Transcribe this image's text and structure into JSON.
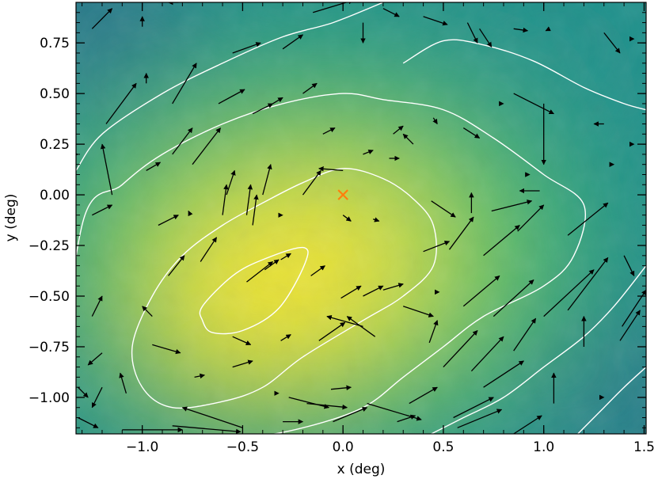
{
  "chart_data": {
    "type": "quiver",
    "xlabel": "x (deg)",
    "ylabel": "y (deg)",
    "xlim": [
      -1.33,
      1.51
    ],
    "ylim": [
      -1.18,
      0.95
    ],
    "xticks": [
      -1.0,
      -0.5,
      0.0,
      0.5,
      1.0,
      1.5
    ],
    "xtick_labels": [
      "−1.0",
      "−0.5",
      "0.0",
      "0.5",
      "1.0",
      "1.5"
    ],
    "yticks": [
      -1.0,
      -0.75,
      -0.5,
      -0.25,
      0.0,
      0.25,
      0.5,
      0.75
    ],
    "ytick_labels": [
      "−1.00",
      "−0.75",
      "−0.50",
      "−0.25",
      "0.00",
      "0.25",
      "0.50",
      "0.75"
    ],
    "colormap": [
      "#440154",
      "#3b528b",
      "#21918c",
      "#5ec962",
      "#fde725"
    ],
    "background_field_peak": {
      "x": -0.3,
      "y": -0.45
    },
    "contour_color": "#ffffff",
    "arrow_color": "#000000",
    "center_marker": {
      "x": 0.0,
      "y": 0.0,
      "symbol": "x",
      "color": "#ff7f0e"
    },
    "contours": [
      {
        "level": 1,
        "points": [
          [
            -0.7,
            -0.55
          ],
          [
            -0.55,
            -0.4
          ],
          [
            -0.4,
            -0.32
          ],
          [
            -0.2,
            -0.26
          ],
          [
            -0.19,
            -0.34
          ],
          [
            -0.32,
            -0.56
          ],
          [
            -0.5,
            -0.67
          ],
          [
            -0.65,
            -0.68
          ],
          [
            -0.7,
            -0.62
          ]
        ]
      },
      {
        "level": 2,
        "points": [
          [
            -1.05,
            -0.75
          ],
          [
            -0.95,
            -0.5
          ],
          [
            -0.8,
            -0.3
          ],
          [
            -0.6,
            -0.15
          ],
          [
            -0.4,
            -0.04
          ],
          [
            -0.2,
            0.06
          ],
          [
            0.0,
            0.13
          ],
          [
            0.2,
            0.08
          ],
          [
            0.35,
            -0.02
          ],
          [
            0.45,
            -0.15
          ],
          [
            0.45,
            -0.35
          ],
          [
            0.3,
            -0.5
          ],
          [
            0.1,
            -0.62
          ],
          [
            -0.2,
            -0.8
          ],
          [
            -0.4,
            -0.95
          ],
          [
            -0.6,
            -1.02
          ],
          [
            -0.85,
            -1.05
          ],
          [
            -1.0,
            -0.95
          ]
        ]
      },
      {
        "level": 3,
        "points": [
          [
            -1.3,
            -0.15
          ],
          [
            -1.1,
            0.05
          ],
          [
            -0.9,
            0.2
          ],
          [
            -0.6,
            0.35
          ],
          [
            -0.3,
            0.45
          ],
          [
            0.0,
            0.5
          ],
          [
            0.2,
            0.47
          ],
          [
            0.5,
            0.42
          ],
          [
            0.75,
            0.28
          ],
          [
            1.0,
            0.1
          ],
          [
            1.2,
            -0.05
          ],
          [
            1.15,
            -0.3
          ],
          [
            1.0,
            -0.45
          ],
          [
            0.7,
            -0.6
          ],
          [
            0.5,
            -0.75
          ],
          [
            0.3,
            -0.9
          ],
          [
            0.1,
            -1.05
          ],
          [
            -0.2,
            -1.15
          ],
          [
            -0.5,
            -1.2
          ],
          [
            -1.1,
            -1.25
          ],
          [
            -1.4,
            -1.2
          ]
        ]
      },
      {
        "level": 4,
        "points": [
          [
            -1.33,
            0.12
          ],
          [
            -1.2,
            0.3
          ],
          [
            -0.9,
            0.5
          ],
          [
            -0.6,
            0.65
          ],
          [
            -0.3,
            0.78
          ],
          [
            -0.05,
            0.85
          ],
          [
            0.2,
            0.95
          ]
        ]
      },
      {
        "level": 4,
        "points": [
          [
            1.51,
            -0.35
          ],
          [
            1.35,
            -0.55
          ],
          [
            1.2,
            -0.7
          ],
          [
            1.0,
            -0.85
          ],
          [
            0.8,
            -1.0
          ],
          [
            0.6,
            -1.1
          ],
          [
            0.4,
            -1.2
          ]
        ]
      },
      {
        "level": 4,
        "points": [
          [
            0.3,
            0.65
          ],
          [
            0.5,
            0.76
          ],
          [
            0.7,
            0.74
          ],
          [
            0.95,
            0.66
          ],
          [
            1.2,
            0.53
          ],
          [
            1.4,
            0.45
          ],
          [
            1.51,
            0.42
          ]
        ]
      },
      {
        "level": 5,
        "points": [
          [
            1.51,
            -0.85
          ],
          [
            1.4,
            -0.95
          ],
          [
            1.3,
            -1.05
          ],
          [
            1.2,
            -1.15
          ],
          [
            1.15,
            -1.2
          ]
        ]
      }
    ],
    "vectors": [
      [
        -1.25,
        0.82,
        0.1,
        0.1
      ],
      [
        -1.0,
        0.83,
        0.0,
        0.05
      ],
      [
        -0.82,
        0.95,
        -0.05,
        0.0
      ],
      [
        -0.55,
        0.7,
        0.14,
        0.05
      ],
      [
        -0.3,
        0.72,
        0.1,
        0.07
      ],
      [
        -0.15,
        0.9,
        0.2,
        0.06
      ],
      [
        0.1,
        0.85,
        0.0,
        -0.1
      ],
      [
        0.2,
        0.92,
        0.08,
        -0.04
      ],
      [
        0.4,
        0.88,
        0.12,
        -0.04
      ],
      [
        0.62,
        0.85,
        0.05,
        -0.1
      ],
      [
        0.68,
        0.82,
        0.06,
        -0.09
      ],
      [
        0.85,
        0.82,
        0.07,
        -0.01
      ],
      [
        1.03,
        0.82,
        -0.02,
        -0.01
      ],
      [
        1.3,
        0.8,
        0.08,
        -0.1
      ],
      [
        1.45,
        0.77,
        0.0,
        0.0
      ],
      [
        -1.18,
        0.35,
        0.15,
        0.2
      ],
      [
        -0.98,
        0.55,
        0.0,
        0.05
      ],
      [
        -0.85,
        0.45,
        0.12,
        0.2
      ],
      [
        -0.62,
        0.45,
        0.13,
        0.07
      ],
      [
        -0.45,
        0.4,
        0.1,
        0.05
      ],
      [
        -0.35,
        0.45,
        0.05,
        0.03
      ],
      [
        -0.2,
        0.5,
        0.07,
        0.05
      ],
      [
        -0.1,
        0.3,
        0.06,
        0.03
      ],
      [
        0.1,
        0.2,
        0.05,
        0.02
      ],
      [
        0.25,
        0.3,
        0.05,
        0.04
      ],
      [
        0.45,
        0.38,
        0.02,
        -0.03
      ],
      [
        0.6,
        0.33,
        0.08,
        -0.05
      ],
      [
        0.8,
        0.45,
        0.0,
        0.0
      ],
      [
        0.85,
        0.5,
        0.2,
        -0.1
      ],
      [
        1.0,
        0.45,
        0.0,
        -0.3
      ],
      [
        1.3,
        0.35,
        -0.05,
        0.0
      ],
      [
        1.45,
        0.25,
        0.0,
        0.0
      ],
      [
        -1.32,
        0.2,
        0.0,
        0.0
      ],
      [
        -1.15,
        0.0,
        -0.05,
        0.25
      ],
      [
        -0.98,
        0.12,
        0.07,
        0.04
      ],
      [
        -0.85,
        0.2,
        0.1,
        0.13
      ],
      [
        -0.75,
        0.15,
        0.14,
        0.18
      ],
      [
        -0.58,
        0.0,
        0.04,
        0.12
      ],
      [
        -0.4,
        0.0,
        0.04,
        0.15
      ],
      [
        -0.2,
        0.0,
        0.09,
        0.12
      ],
      [
        0.0,
        0.12,
        -0.12,
        0.01
      ],
      [
        0.23,
        0.18,
        0.05,
        0.0
      ],
      [
        0.35,
        0.25,
        -0.05,
        0.05
      ],
      [
        0.44,
        -0.03,
        0.12,
        -0.08
      ],
      [
        0.64,
        -0.09,
        0.0,
        0.1
      ],
      [
        0.74,
        -0.08,
        0.2,
        0.05
      ],
      [
        0.93,
        0.1,
        0.0,
        0.0
      ],
      [
        0.98,
        0.02,
        -0.1,
        0.0
      ],
      [
        1.35,
        0.15,
        0.0,
        0.0
      ],
      [
        -1.25,
        -0.1,
        0.1,
        0.05
      ],
      [
        -0.92,
        -0.15,
        0.1,
        0.05
      ],
      [
        -0.76,
        -0.1,
        -0.01,
        0.02
      ],
      [
        -0.6,
        -0.1,
        0.02,
        0.15
      ],
      [
        -0.48,
        -0.1,
        0.02,
        0.15
      ],
      [
        -0.45,
        -0.15,
        0.02,
        0.15
      ],
      [
        -0.3,
        -0.1,
        0.0,
        0.0
      ],
      [
        0.0,
        -0.1,
        0.04,
        -0.03
      ],
      [
        0.15,
        -0.12,
        0.03,
        -0.01
      ],
      [
        0.4,
        -0.28,
        0.13,
        0.05
      ],
      [
        0.48,
        -0.48,
        0.0,
        0.0
      ],
      [
        0.53,
        -0.27,
        0.12,
        0.16
      ],
      [
        0.7,
        -0.3,
        0.18,
        0.15
      ],
      [
        0.87,
        -0.18,
        0.13,
        0.13
      ],
      [
        1.12,
        -0.2,
        0.2,
        0.16
      ],
      [
        1.4,
        -0.3,
        0.05,
        -0.1
      ],
      [
        -1.25,
        -0.6,
        0.05,
        0.1
      ],
      [
        -0.95,
        -0.6,
        -0.05,
        0.05
      ],
      [
        -0.87,
        -0.4,
        0.08,
        0.1
      ],
      [
        -0.71,
        -0.33,
        0.08,
        0.12
      ],
      [
        -0.48,
        -0.43,
        0.13,
        0.1
      ],
      [
        -0.39,
        -0.37,
        0.07,
        0.05
      ],
      [
        -0.31,
        -0.32,
        0.05,
        0.03
      ],
      [
        -0.16,
        -0.4,
        0.07,
        0.05
      ],
      [
        -0.01,
        -0.51,
        0.1,
        0.06
      ],
      [
        0.1,
        -0.5,
        0.1,
        0.05
      ],
      [
        0.2,
        -0.47,
        0.1,
        0.03
      ],
      [
        0.3,
        -0.55,
        0.15,
        -0.05
      ],
      [
        0.6,
        -0.55,
        0.18,
        0.15
      ],
      [
        0.75,
        -0.6,
        0.2,
        0.18
      ],
      [
        1.0,
        -0.6,
        0.25,
        0.23
      ],
      [
        1.12,
        -0.57,
        0.2,
        0.26
      ],
      [
        1.38,
        -0.72,
        0.1,
        0.15
      ],
      [
        -1.2,
        -0.78,
        -0.07,
        -0.06
      ],
      [
        -0.95,
        -0.74,
        0.14,
        -0.04
      ],
      [
        -0.74,
        -0.9,
        0.05,
        0.01
      ],
      [
        -0.55,
        -0.7,
        0.09,
        -0.04
      ],
      [
        -0.31,
        -0.72,
        0.05,
        0.03
      ],
      [
        -0.12,
        -0.72,
        0.13,
        0.09
      ],
      [
        0.1,
        -0.65,
        -0.18,
        0.05
      ],
      [
        0.16,
        -0.7,
        -0.14,
        0.1
      ],
      [
        0.43,
        -0.73,
        0.04,
        0.11
      ],
      [
        0.5,
        -0.85,
        0.17,
        0.18
      ],
      [
        0.64,
        -0.87,
        0.16,
        0.17
      ],
      [
        0.85,
        -0.77,
        0.11,
        0.16
      ],
      [
        1.2,
        -0.75,
        0.0,
        0.15
      ],
      [
        1.39,
        -0.65,
        0.12,
        0.18
      ],
      [
        -1.32,
        -0.95,
        0.05,
        -0.05
      ],
      [
        -1.2,
        -0.95,
        -0.05,
        -0.1
      ],
      [
        -1.08,
        -0.98,
        -0.03,
        0.1
      ],
      [
        -0.55,
        -0.85,
        0.1,
        0.03
      ],
      [
        -0.32,
        -0.98,
        0.0,
        0.0
      ],
      [
        -0.27,
        -1.0,
        0.2,
        -0.05
      ],
      [
        -0.18,
        -1.03,
        0.2,
        -0.02
      ],
      [
        -0.06,
        -0.96,
        0.1,
        0.01
      ],
      [
        0.12,
        -1.03,
        0.27,
        -0.08
      ],
      [
        0.33,
        -1.03,
        0.14,
        0.08
      ],
      [
        0.55,
        -1.1,
        0.2,
        0.1
      ],
      [
        0.7,
        -0.95,
        0.2,
        0.13
      ],
      [
        1.05,
        -1.03,
        0.0,
        0.15
      ],
      [
        1.3,
        -1.0,
        0.0,
        0.0
      ],
      [
        -1.32,
        -1.1,
        0.1,
        -0.05
      ],
      [
        -1.1,
        -1.16,
        0.3,
        0.0
      ],
      [
        -0.85,
        -1.14,
        0.34,
        -0.03
      ],
      [
        -0.5,
        -1.15,
        -0.3,
        0.1
      ],
      [
        -0.3,
        -1.12,
        0.1,
        0.0
      ],
      [
        -0.05,
        -1.12,
        0.17,
        0.07
      ],
      [
        0.27,
        -1.12,
        0.09,
        0.03
      ],
      [
        0.57,
        -1.15,
        0.22,
        0.09
      ],
      [
        0.85,
        -1.18,
        0.14,
        0.09
      ]
    ]
  }
}
